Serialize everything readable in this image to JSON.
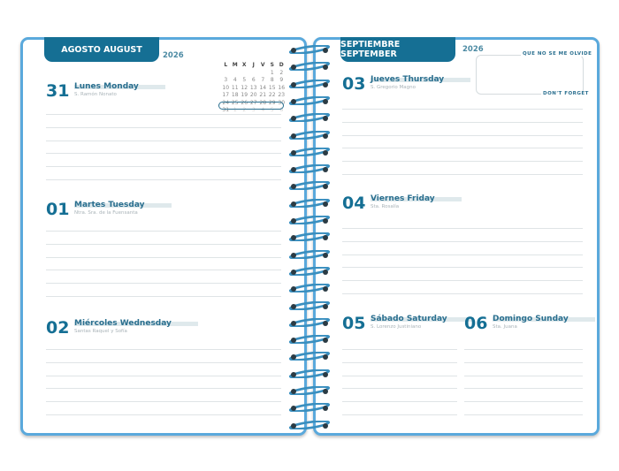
{
  "left_page": {
    "month": "AGOSTO AUGUST",
    "year": "2026",
    "mini_calendar": {
      "headers": [
        "L",
        "M",
        "X",
        "J",
        "V",
        "S",
        "D"
      ],
      "rows": [
        [
          "",
          "",
          "",
          "",
          "",
          "1",
          "2"
        ],
        [
          "3",
          "4",
          "5",
          "6",
          "7",
          "8",
          "9"
        ],
        [
          "10",
          "11",
          "12",
          "13",
          "14",
          "15",
          "16"
        ],
        [
          "17",
          "18",
          "19",
          "20",
          "21",
          "22",
          "23"
        ],
        [
          "24",
          "25",
          "26",
          "27",
          "28",
          "29",
          "30"
        ],
        [
          "31",
          "1",
          "2",
          "3",
          "4",
          "5",
          "6"
        ]
      ]
    },
    "days": [
      {
        "num": "31",
        "name": "Lunes Monday",
        "saint": "S. Ramón Nonato"
      },
      {
        "num": "01",
        "name": "Martes Tuesday",
        "saint": "Ntra. Sra. de la Fuensanta"
      },
      {
        "num": "02",
        "name": "Miércoles Wednesday",
        "saint": "Santas Raquel y Sofía"
      }
    ]
  },
  "right_page": {
    "month": "SEPTIEMBRE SEPTEMBER",
    "year": "2026",
    "memo": {
      "top": "QUE NO SE ME OLVIDE",
      "bottom": "DON'T FORGET"
    },
    "days": [
      {
        "num": "03",
        "name": "Jueves Thursday",
        "saint": "S. Gregorio Magno"
      },
      {
        "num": "04",
        "name": "Viernes Friday",
        "saint": "Sta. Rosalía"
      },
      {
        "num": "05",
        "name": "Sábado Saturday",
        "saint": "S. Lorenzo Justiniano"
      },
      {
        "num": "06",
        "name": "Domingo Sunday",
        "saint": "Sta. Juana"
      }
    ]
  },
  "colors": {
    "accent": "#156f94",
    "border": "#5aa9dc",
    "spiral": "#3a8fbf"
  }
}
